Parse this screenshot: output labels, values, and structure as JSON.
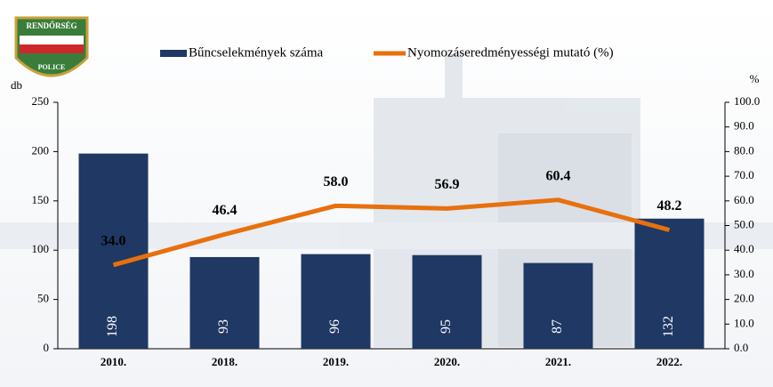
{
  "logo": {
    "top": "RENDŐRSÉG",
    "bottom": "POLICE"
  },
  "chart_data": {
    "type": "bar",
    "categories": [
      "2010.",
      "2018.",
      "2019.",
      "2020.",
      "2021.",
      "2022."
    ],
    "series": [
      {
        "name": "Bűncselekmények száma",
        "color": "#1f3864",
        "values": [
          198,
          93,
          96,
          95,
          87,
          132
        ]
      },
      {
        "name": "Nyomozáseredményességi mutató (%)",
        "type": "line",
        "axis": "y2",
        "color": "#e8700d",
        "values": [
          34.0,
          46.4,
          58.0,
          56.9,
          60.4,
          48.2
        ],
        "value_labels": [
          "34.0",
          "46.4",
          "58.0",
          "56.9",
          "60.4",
          "48.2"
        ]
      }
    ],
    "ylabel": "db",
    "y2label": "%",
    "ylim": [
      0,
      250
    ],
    "yticks": [
      0,
      50,
      100,
      150,
      200,
      250
    ],
    "y2lim": [
      0,
      100
    ],
    "y2ticks": [
      {
        "value": 0,
        "label": "0.0"
      },
      {
        "value": 10,
        "label": "10.0"
      },
      {
        "value": 20,
        "label": "20.0"
      },
      {
        "value": 30,
        "label": "30.0"
      },
      {
        "value": 40,
        "label": "40.0"
      },
      {
        "value": 50,
        "label": "50.0"
      },
      {
        "value": 60,
        "label": "60.0"
      },
      {
        "value": 70,
        "label": "70.0"
      },
      {
        "value": 80,
        "label": "80.0"
      },
      {
        "value": 90,
        "label": "90.0"
      },
      {
        "value": 100,
        "label": "100.0"
      }
    ]
  }
}
